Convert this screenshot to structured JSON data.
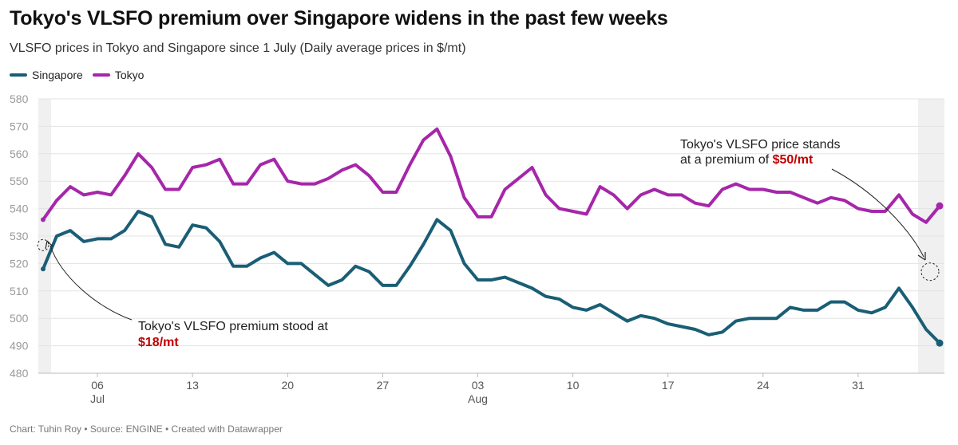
{
  "header": {
    "title": "Tokyo's VLSFO premium over Singapore widens in the past few weeks",
    "subtitle": "VLSFO prices in Tokyo and Singapore since 1 July (Daily average prices in $/mt)"
  },
  "legend": [
    {
      "name": "Singapore",
      "color": "#1a5e75"
    },
    {
      "name": "Tokyo",
      "color": "#a626aa"
    }
  ],
  "footer": "Chart: Tuhin Roy • Source: ENGINE • Created with Datawrapper",
  "chart_data": {
    "type": "line",
    "start_date": "2024-07-02",
    "ylim": [
      480,
      580
    ],
    "yticks": [
      480,
      490,
      500,
      510,
      520,
      530,
      540,
      550,
      560,
      570,
      580
    ],
    "grid": true,
    "legend_position": "top-left",
    "xticks": [
      {
        "day": 4,
        "label": "06",
        "sublabel": "Jul"
      },
      {
        "day": 11,
        "label": "13",
        "sublabel": ""
      },
      {
        "day": 18,
        "label": "20",
        "sublabel": ""
      },
      {
        "day": 25,
        "label": "27",
        "sublabel": ""
      },
      {
        "day": 32,
        "label": "03",
        "sublabel": "Aug"
      },
      {
        "day": 39,
        "label": "10",
        "sublabel": ""
      },
      {
        "day": 46,
        "label": "17",
        "sublabel": ""
      },
      {
        "day": 53,
        "label": "24",
        "sublabel": ""
      },
      {
        "day": 60,
        "label": "31",
        "sublabel": ""
      }
    ],
    "series": [
      {
        "name": "Singapore",
        "color": "#1a5e75",
        "values": [
          518,
          530,
          532,
          528,
          529,
          529,
          532,
          539,
          537,
          527,
          526,
          534,
          533,
          528,
          519,
          519,
          522,
          524,
          520,
          520,
          516,
          512,
          514,
          519,
          517,
          512,
          512,
          519,
          527,
          536,
          532,
          520,
          514,
          514,
          515,
          513,
          511,
          508,
          507,
          504,
          503,
          505,
          502,
          499,
          501,
          500,
          498,
          497,
          496,
          494,
          495,
          499,
          500,
          500,
          500,
          504,
          503,
          503,
          506,
          506,
          503,
          502,
          504,
          511,
          504,
          496,
          491
        ]
      },
      {
        "name": "Tokyo",
        "color": "#a626aa",
        "values": [
          536,
          543,
          548,
          545,
          546,
          545,
          552,
          560,
          555,
          547,
          547,
          555,
          556,
          558,
          549,
          549,
          556,
          558,
          550,
          549,
          549,
          551,
          554,
          556,
          552,
          546,
          546,
          556,
          565,
          569,
          559,
          544,
          537,
          537,
          547,
          551,
          555,
          545,
          540,
          539,
          538,
          548,
          545,
          540,
          545,
          547,
          545,
          545,
          542,
          541,
          547,
          549,
          547,
          547,
          546,
          546,
          544,
          542,
          544,
          543,
          540,
          539,
          539,
          545,
          538,
          535,
          541
        ]
      }
    ],
    "annotations": [
      {
        "text_lines": [
          "Tokyo's VLSFO premium stood at"
        ],
        "highlight": "$18/mt",
        "day": 0
      },
      {
        "text_lines": [
          "Tokyo's VLSFO price stands",
          "at a premium of "
        ],
        "highlight": "$50/mt",
        "day": 66
      }
    ]
  }
}
